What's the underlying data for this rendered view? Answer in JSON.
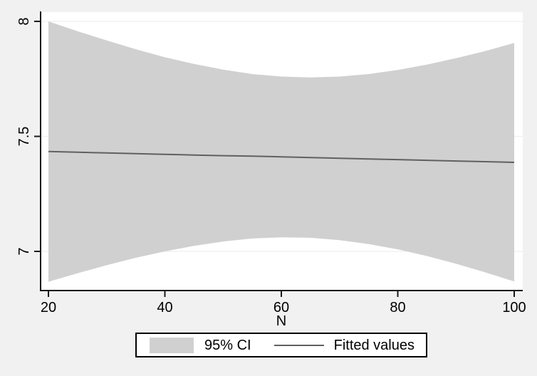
{
  "figure": {
    "canvas_bg": "#f1f1f1",
    "plot_bg": "#ffffff"
  },
  "chart_data": {
    "type": "line",
    "title": "",
    "xlabel": "N",
    "ylabel": "",
    "xlim": [
      20,
      100
    ],
    "ylim": [
      6.83,
      8.04
    ],
    "x_ticks": [
      20,
      40,
      60,
      80,
      100
    ],
    "y_ticks": [
      7,
      7.5,
      8
    ],
    "y_tick_labels": [
      "7",
      "7.5",
      "8"
    ],
    "grid": "horizontal-only",
    "legend_position": "bottom-center",
    "x": [
      20,
      25,
      30,
      35,
      40,
      45,
      50,
      55,
      60,
      65,
      70,
      75,
      80,
      85,
      90,
      95,
      100
    ],
    "series": [
      {
        "name": "Fitted values",
        "type": "line",
        "values": [
          7.434,
          7.431,
          7.428,
          7.425,
          7.422,
          7.419,
          7.416,
          7.414,
          7.411,
          7.408,
          7.405,
          7.402,
          7.399,
          7.396,
          7.393,
          7.39,
          7.387
        ]
      },
      {
        "name": "95% CI",
        "type": "band",
        "upper": [
          8.0,
          7.957,
          7.917,
          7.879,
          7.844,
          7.815,
          7.79,
          7.771,
          7.76,
          7.756,
          7.76,
          7.771,
          7.789,
          7.812,
          7.84,
          7.871,
          7.906
        ],
        "lower": [
          6.868,
          6.905,
          6.94,
          6.972,
          7.0,
          7.024,
          7.043,
          7.056,
          7.061,
          7.059,
          7.049,
          7.032,
          7.009,
          6.98,
          6.946,
          6.909,
          6.869
        ]
      }
    ],
    "legend": {
      "ci_label": "95% CI",
      "fit_label": "Fitted values"
    },
    "colors": {
      "band": "#d0d0d0",
      "fitted_line": "#606060",
      "axis": "#1a1a1a",
      "grid": "#efefef",
      "canvas_bg": "#f1f1f1",
      "plot_bg": "#ffffff"
    }
  }
}
